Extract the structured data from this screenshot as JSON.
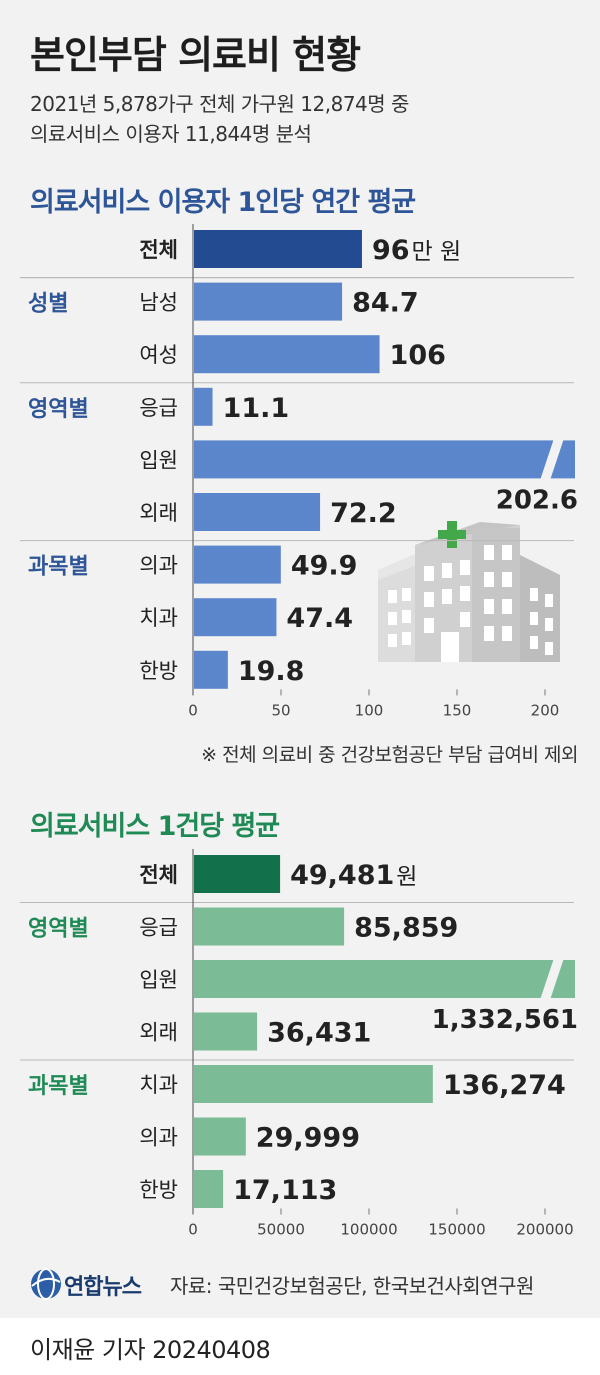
{
  "title": "본인부담 의료비 현황",
  "subtitle_lines": [
    "2021년 5,878가구 전체 가구원 12,874명 중",
    "의료서비스 이용자 11,844명 분석"
  ],
  "colors": {
    "blue_bar": "#5b86cc",
    "blue_total": "#224b92",
    "green_bar": "#7bbb96",
    "green_total": "#12704a"
  },
  "icon": "hospital-building-icon",
  "chart_data": [
    {
      "type": "bar",
      "orientation": "horizontal",
      "title": "의료서비스 이용자 1인당 연간 평균",
      "xlim": [
        0,
        200
      ],
      "xticks": [
        0,
        50,
        100,
        150,
        200
      ],
      "tick_labels": [
        "0",
        "50",
        "100",
        "150",
        "200"
      ],
      "rows": [
        {
          "group": "",
          "category": "전체",
          "value": 96,
          "label": "96",
          "unit": "만 원",
          "total": true
        },
        {
          "group": "성별",
          "category": "남성",
          "value": 84.7,
          "label": "84.7"
        },
        {
          "group": "",
          "category": "여성",
          "value": 106,
          "label": "106"
        },
        {
          "group": "영역별",
          "category": "응급",
          "value": 11.1,
          "label": "11.1"
        },
        {
          "group": "",
          "category": "입원",
          "value": 202.6,
          "label": "202.6"
        },
        {
          "group": "",
          "category": "외래",
          "value": 72.2,
          "label": "72.2"
        },
        {
          "group": "과목별",
          "category": "의과",
          "value": 49.9,
          "label": "49.9"
        },
        {
          "group": "",
          "category": "치과",
          "value": 47.4,
          "label": "47.4"
        },
        {
          "group": "",
          "category": "한방",
          "value": 19.8,
          "label": "19.8"
        }
      ],
      "footnote": "※ 전체 의료비 중 건강보험공단 부담 급여비 제외"
    },
    {
      "type": "bar",
      "orientation": "horizontal",
      "title": "의료서비스 1건당 평균",
      "xlim": [
        0,
        200000
      ],
      "xticks": [
        0,
        50000,
        100000,
        150000,
        200000
      ],
      "tick_labels": [
        "0",
        "50000",
        "100000",
        "150000",
        "200000"
      ],
      "axis_break": true,
      "rows": [
        {
          "group": "",
          "category": "전체",
          "value": 49481,
          "label": "49,481",
          "unit": "원",
          "total": true
        },
        {
          "group": "영역별",
          "category": "응급",
          "value": 85859,
          "label": "85,859"
        },
        {
          "group": "",
          "category": "입원",
          "value": 1332561,
          "label": "1,332,561"
        },
        {
          "group": "",
          "category": "외래",
          "value": 36431,
          "label": "36,431"
        },
        {
          "group": "과목별",
          "category": "치과",
          "value": 136274,
          "label": "136,274"
        },
        {
          "group": "",
          "category": "의과",
          "value": 29999,
          "label": "29,999"
        },
        {
          "group": "",
          "category": "한방",
          "value": 17113,
          "label": "17,113"
        }
      ]
    }
  ],
  "source": "자료: 국민건강보험공단, 한국보건사회연구원",
  "logo_text": "연합뉴스",
  "reporter": "이재윤 기자  20240408"
}
